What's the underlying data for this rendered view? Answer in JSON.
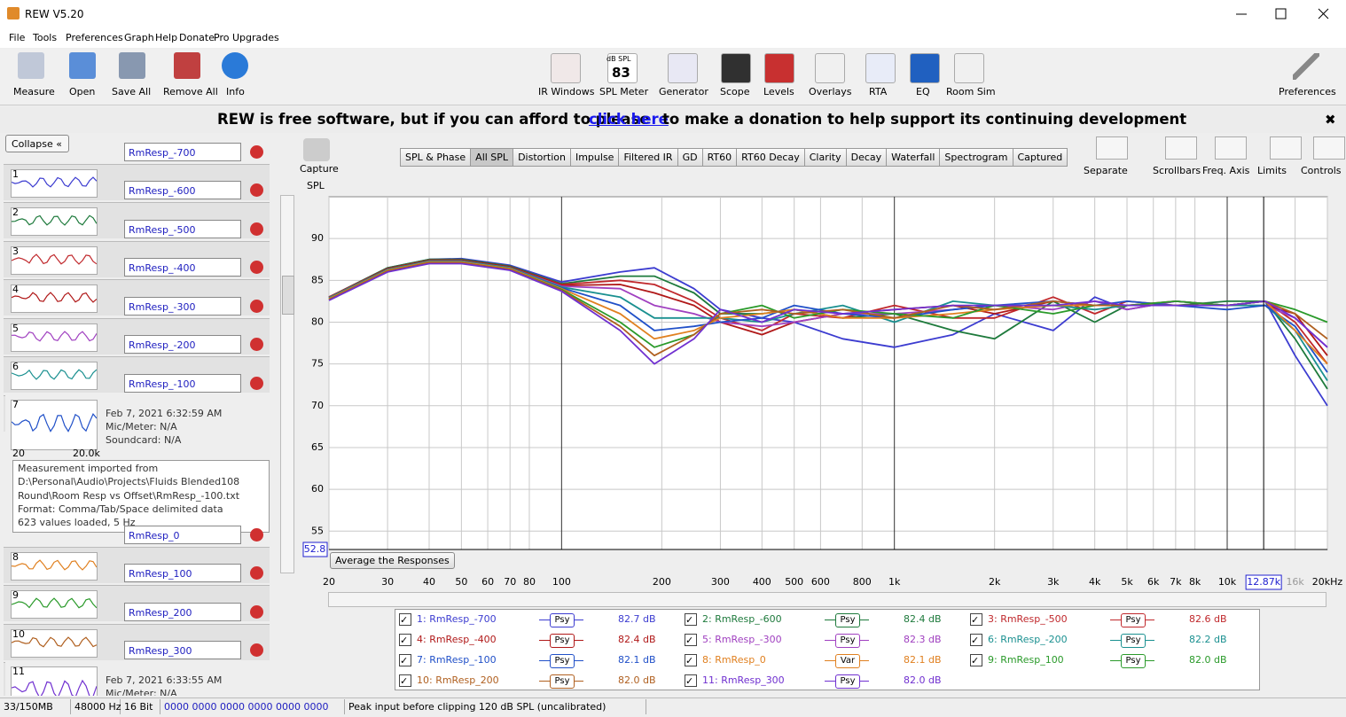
{
  "window_title": "REW V5.20",
  "menu": [
    "File",
    "Tools",
    "Preferences",
    "Graph",
    "Help",
    "Donate",
    "Pro Upgrades"
  ],
  "toolbar_left": [
    "Measure",
    "Open",
    "Save All",
    "Remove All",
    "Info"
  ],
  "toolbar_center": [
    "IR Windows",
    "SPL Meter",
    "Generator",
    "Scope",
    "Levels",
    "Overlays",
    "RTA",
    "EQ",
    "Room Sim"
  ],
  "toolbar_right": "Preferences",
  "spl_meter_icon": {
    "unit": "dB SPL",
    "reading": "83"
  },
  "banner": {
    "before": "REW is free software, but if you can afford to please",
    "link": "click here",
    "after": "to make a donation to help support its continuing development"
  },
  "collapse": "Collapse",
  "measurements": [
    {
      "number": "1",
      "name": "RmResp_-700"
    },
    {
      "number": "2",
      "name": "RmResp_-600"
    },
    {
      "number": "3",
      "name": "RmResp_-500"
    },
    {
      "number": "4",
      "name": "RmResp_-400"
    },
    {
      "number": "5",
      "name": "RmResp_-300"
    },
    {
      "number": "6",
      "name": "RmResp_-200"
    },
    {
      "number": "7",
      "name": "RmResp_-100",
      "date": "Feb 7, 2021 6:32:59 AM",
      "mic": "Mic/Meter: N/A",
      "soundcard": "Soundcard: N/A",
      "thumb_min": "20",
      "thumb_max": "20.0k",
      "notes": [
        "Measurement imported from",
        "D:\\Personal\\Audio\\Projects\\Fluids Blended108",
        "Round\\Room Resp vs Offset\\RmResp_-100.txt",
        "Format: Comma/Tab/Space delimited data",
        "623 values loaded, 5 Hz"
      ]
    },
    {
      "number": "8",
      "name": "RmResp_0"
    },
    {
      "number": "9",
      "name": "RmResp_100"
    },
    {
      "number": "10",
      "name": "RmResp_200"
    },
    {
      "number": "11",
      "name": "RmResp_300",
      "date": "Feb 7, 2021 6:33:55 AM",
      "mic": "Mic/Meter: N/A"
    }
  ],
  "graph": {
    "capture": "Capture",
    "tabs": [
      "SPL & Phase",
      "All SPL",
      "Distortion",
      "Impulse",
      "Filtered IR",
      "GD",
      "RT60",
      "RT60 Decay",
      "Clarity",
      "Decay",
      "Waterfall",
      "Spectrogram",
      "Captured"
    ],
    "selected_tab": 1,
    "view_buttons": [
      "Separate",
      "Scrollbars",
      "Freq. Axis",
      "Limits",
      "Controls"
    ],
    "average_button": "Average the Responses"
  },
  "chart_data": {
    "type": "line",
    "y_label": "SPL",
    "log_x": true,
    "grid": true,
    "xlim": [
      20,
      20000
    ],
    "ylim": [
      52.8,
      95
    ],
    "xticks": [
      20,
      30,
      40,
      50,
      60,
      70,
      80,
      100,
      200,
      300,
      400,
      500,
      600,
      800,
      {
        "value": 1000,
        "label": "1k"
      },
      {
        "value": 2000,
        "label": "2k"
      },
      {
        "value": 3000,
        "label": "3k"
      },
      {
        "value": 4000,
        "label": "4k"
      },
      {
        "value": 5000,
        "label": "5k"
      },
      {
        "value": 6000,
        "label": "6k"
      },
      {
        "value": 7000,
        "label": "7k"
      },
      {
        "value": 8000,
        "label": "8k"
      },
      {
        "value": 10000,
        "label": "10k"
      },
      {
        "value": 16000,
        "label": "16k"
      },
      {
        "value": 20000,
        "label": "20kHz"
      }
    ],
    "yticks": [
      55,
      60,
      65,
      70,
      75,
      80,
      85,
      90
    ],
    "cursor_x": {
      "value": 12870,
      "label": "12.87k"
    },
    "cursor_y": {
      "value": 52.8,
      "label": "52.8"
    },
    "x": [
      20,
      30,
      40,
      50,
      70,
      100,
      150,
      190,
      250,
      300,
      400,
      500,
      700,
      1000,
      1500,
      2000,
      3000,
      4000,
      5000,
      7000,
      10000,
      13000,
      16000,
      20000
    ],
    "series": [
      {
        "name": "1: RmResp_-700",
        "color": "#3c3cd0",
        "smoothing": "Psy",
        "level": "82.7 dB",
        "values": [
          83,
          86.5,
          87.5,
          87.6,
          86.8,
          84.8,
          86,
          86.5,
          84,
          81.5,
          80.5,
          80,
          78,
          77,
          78.5,
          81,
          79,
          83,
          81.5,
          82.5,
          82,
          82.5,
          76,
          70
        ]
      },
      {
        "name": "2: RmResp_-600",
        "color": "#1e7a3c",
        "smoothing": "Psy",
        "level": "82.4 dB",
        "values": [
          83,
          86.5,
          87.5,
          87.5,
          86.7,
          84.6,
          85.5,
          85.5,
          83.5,
          81,
          81,
          81.5,
          80.5,
          81,
          79,
          78,
          82.5,
          80,
          82,
          82,
          82.5,
          82.5,
          78,
          72
        ]
      },
      {
        "name": "3: RmResp_-500",
        "color": "#c0282c",
        "smoothing": "Psy",
        "level": "82.6 dB",
        "values": [
          83,
          86.4,
          87.4,
          87.4,
          86.6,
          84.5,
          85,
          84.5,
          82.5,
          80.5,
          79,
          81,
          80.5,
          82,
          80.5,
          80.5,
          83,
          81,
          82.5,
          82,
          82,
          82.5,
          80,
          75
        ]
      },
      {
        "name": "4: RmResp_-400",
        "color": "#b01818",
        "smoothing": "Psy",
        "level": "82.4 dB",
        "values": [
          82.9,
          86.4,
          87.4,
          87.4,
          86.6,
          84.4,
          84.5,
          83.5,
          82,
          80,
          78.5,
          80,
          81,
          81.5,
          82,
          81,
          82.5,
          82,
          82,
          82.5,
          82,
          82,
          81,
          76
        ]
      },
      {
        "name": "5: RmResp_-300",
        "color": "#a040c0",
        "smoothing": "Psy",
        "level": "82.3 dB",
        "values": [
          82.9,
          86.3,
          87.3,
          87.3,
          86.5,
          84.3,
          84,
          82,
          81,
          80,
          79.5,
          80,
          81,
          81,
          81.5,
          82,
          81.5,
          82.5,
          81.5,
          82.5,
          82,
          82,
          80.5,
          77
        ]
      },
      {
        "name": "6: RmResp_-200",
        "color": "#1a9090",
        "smoothing": "Psy",
        "level": "82.2 dB",
        "values": [
          82.9,
          86.3,
          87.3,
          87.3,
          86.5,
          84.2,
          83,
          80.5,
          80.5,
          80.5,
          80,
          81,
          82,
          80,
          82.5,
          82,
          82,
          81.5,
          82,
          82,
          82,
          82,
          79,
          73
        ]
      },
      {
        "name": "7: RmResp_-100",
        "color": "#2050c8",
        "smoothing": "Psy",
        "level": "82.1 dB",
        "values": [
          82.8,
          86.2,
          87.2,
          87.2,
          86.4,
          84.1,
          82,
          79,
          79.5,
          80,
          80.5,
          82,
          81,
          80.5,
          81.5,
          82,
          82.5,
          82,
          82.5,
          82,
          81.5,
          82,
          79.5,
          74
        ]
      },
      {
        "name": "8: RmResp_0",
        "color": "#e08020",
        "smoothing": "Var",
        "level": "82.1 dB",
        "values": [
          82.8,
          86.2,
          87.2,
          87.2,
          86.4,
          84,
          81,
          78,
          79,
          80.5,
          81,
          81.5,
          80.5,
          80.5,
          81,
          81.5,
          82,
          82,
          82,
          82,
          82,
          82.5,
          79,
          75
        ]
      },
      {
        "name": "9: RmResp_100",
        "color": "#2a9a2a",
        "smoothing": "Psy",
        "level": "82.0 dB",
        "values": [
          82.7,
          86.1,
          87.1,
          87.1,
          86.3,
          83.9,
          80,
          77,
          78.5,
          81,
          82,
          80.5,
          81.5,
          81,
          80.5,
          82,
          81,
          82,
          82,
          82.5,
          82,
          82.5,
          81.5,
          80
        ]
      },
      {
        "name": "10: RmResp_200",
        "color": "#b06020",
        "smoothing": "Psy",
        "level": "82.0 dB",
        "values": [
          82.7,
          86.1,
          87.1,
          87.1,
          86.3,
          83.8,
          79.5,
          76,
          78.5,
          81,
          81.5,
          81,
          81.5,
          80.5,
          82,
          81.5,
          82.5,
          82,
          82,
          82,
          82,
          82.5,
          81,
          78
        ]
      },
      {
        "name": "11: RmResp_300",
        "color": "#7030d0",
        "smoothing": "Psy",
        "level": "82.0 dB",
        "values": [
          82.6,
          86,
          87,
          87,
          86.2,
          83.7,
          79,
          75,
          78,
          81.5,
          80,
          81.5,
          81,
          81.5,
          82,
          82,
          82,
          82.5,
          82,
          82,
          82,
          82.5,
          80.5,
          77
        ]
      }
    ]
  },
  "status": [
    "33/150MB",
    "48000 Hz",
    "16 Bit",
    "0000 0000  0000 0000  0000 0000",
    "Peak input before clipping 120 dB SPL (uncalibrated)"
  ]
}
